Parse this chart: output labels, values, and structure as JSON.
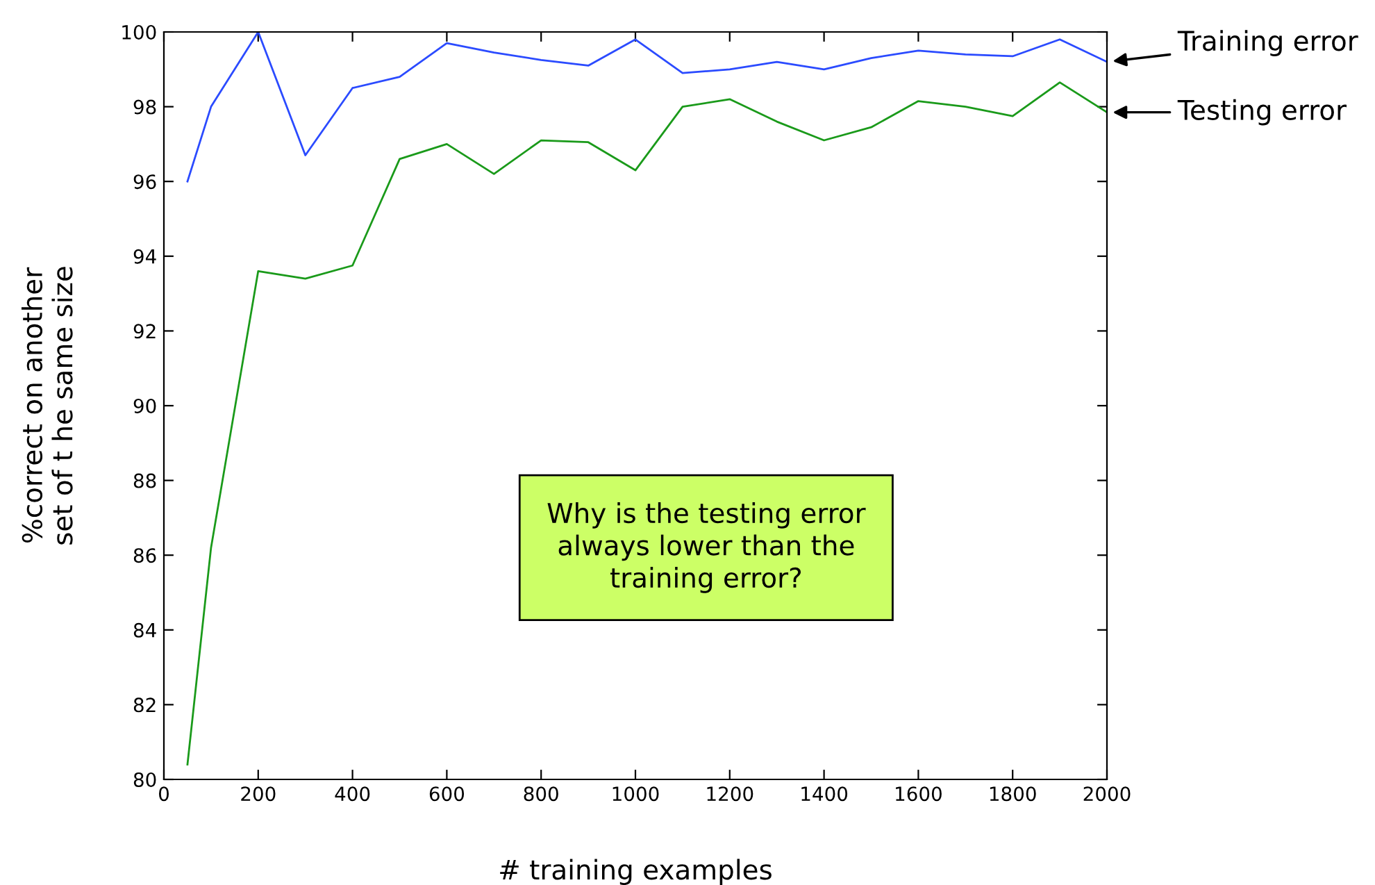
{
  "chart_data": {
    "type": "line",
    "xlabel": "# training examples",
    "ylabel": "%correct on another\nset of t he same size",
    "xlim": [
      0,
      2000
    ],
    "xticks": [
      0,
      200,
      400,
      600,
      800,
      1000,
      1200,
      1400,
      1600,
      1800,
      2000
    ],
    "ylim": [
      80,
      100
    ],
    "yticks": [
      80,
      82,
      84,
      86,
      88,
      90,
      92,
      94,
      96,
      98,
      100
    ],
    "grid": false,
    "legend": false,
    "series": [
      {
        "name": "Training error",
        "color": "#2b4bff",
        "x": [
          50,
          100,
          200,
          300,
          400,
          500,
          600,
          700,
          800,
          900,
          1000,
          1100,
          1200,
          1300,
          1400,
          1500,
          1600,
          1700,
          1800,
          1900,
          2000
        ],
        "values": [
          96.0,
          98.0,
          100,
          96.7,
          98.5,
          98.8,
          99.7,
          99.45,
          99.25,
          99.1,
          99.8,
          98.9,
          99.0,
          99.2,
          99.0,
          99.3,
          99.5,
          99.4,
          99.35,
          99.8,
          99.2
        ]
      },
      {
        "name": "Testing error",
        "color": "#1a9a1a",
        "x": [
          50,
          100,
          200,
          300,
          400,
          500,
          600,
          700,
          800,
          900,
          1000,
          1100,
          1200,
          1300,
          1400,
          1500,
          1600,
          1700,
          1800,
          1900,
          2000
        ],
        "values": [
          80.4,
          86.2,
          93.6,
          93.4,
          93.75,
          96.6,
          97.0,
          96.2,
          97.1,
          97.05,
          96.3,
          98.0,
          98.2,
          97.6,
          97.1,
          97.45,
          98.15,
          98.0,
          97.75,
          98.65,
          97.85
        ]
      }
    ],
    "annotations": [
      "Why is the testing error\nalways lower than the\ntraining error?"
    ]
  }
}
